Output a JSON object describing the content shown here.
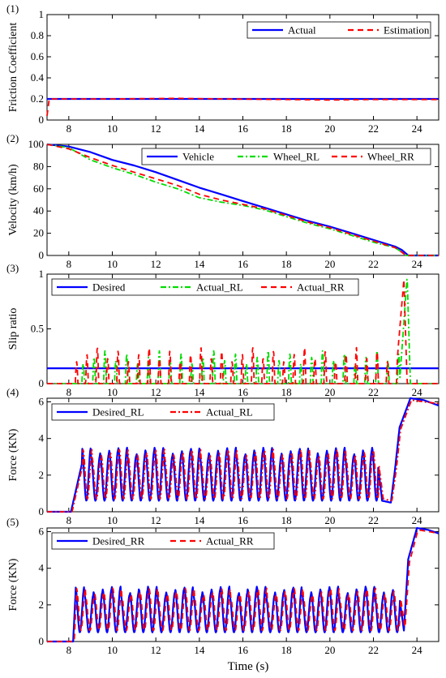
{
  "xlabel": "Time (s)",
  "chart_data": [
    {
      "id": "p1",
      "panel_label": "(1)",
      "type": "line",
      "ylabel": "Friction Coefficient",
      "xlim": [
        7,
        25
      ],
      "ylim": [
        0,
        1
      ],
      "xticks": [
        "8",
        "10",
        "12",
        "14",
        "16",
        "18",
        "20",
        "22",
        "24"
      ],
      "yticks": [
        "0",
        "0.2",
        "0.4",
        "0.6",
        "0.8",
        "1"
      ],
      "legend_position": "top-right",
      "series": [
        {
          "name": "Actual",
          "color": "#0000ff",
          "style": "solid",
          "points": [
            [
              7,
              0.2
            ],
            [
              25,
              0.2
            ]
          ]
        },
        {
          "name": "Estimation",
          "color": "#ff0000",
          "style": "dash",
          "points": [
            [
              7,
              0.04
            ],
            [
              7.1,
              0.2
            ],
            [
              10,
              0.2
            ],
            [
              13,
              0.205
            ],
            [
              15,
              0.2
            ],
            [
              18,
              0.195
            ],
            [
              20,
              0.19
            ],
            [
              22,
              0.195
            ],
            [
              25,
              0.195
            ]
          ]
        }
      ]
    },
    {
      "id": "p2",
      "panel_label": "(2)",
      "type": "line",
      "ylabel": "Velocity (km/h)",
      "xlim": [
        7,
        25
      ],
      "ylim": [
        0,
        100
      ],
      "xticks": [
        "8",
        "10",
        "12",
        "14",
        "16",
        "18",
        "20",
        "22",
        "24"
      ],
      "yticks": [
        "0",
        "20",
        "40",
        "60",
        "80",
        "100"
      ],
      "legend_position": "top-right",
      "series": [
        {
          "name": "Vehicle",
          "color": "#0000ff",
          "style": "solid",
          "points": [
            [
              7,
              100
            ],
            [
              8,
              98
            ],
            [
              9,
              93
            ],
            [
              10,
              86
            ],
            [
              11,
              81
            ],
            [
              12,
              75
            ],
            [
              13,
              68
            ],
            [
              14,
              61
            ],
            [
              15,
              55
            ],
            [
              16,
              49
            ],
            [
              17,
              43
            ],
            [
              18,
              37
            ],
            [
              19,
              31
            ],
            [
              20,
              26
            ],
            [
              21,
              20
            ],
            [
              22,
              14
            ],
            [
              23,
              8
            ],
            [
              23.3,
              5
            ],
            [
              23.6,
              0
            ],
            [
              25,
              0
            ]
          ]
        },
        {
          "name": "Wheel_RL",
          "color": "#00dd00",
          "style": "dashdot",
          "points": [
            [
              7,
              100
            ],
            [
              8,
              97
            ],
            [
              9,
              86
            ],
            [
              10,
              79
            ],
            [
              11,
              73
            ],
            [
              12,
              66
            ],
            [
              13,
              60
            ],
            [
              14,
              52
            ],
            [
              15,
              48
            ],
            [
              16,
              45
            ],
            [
              17,
              41
            ],
            [
              18,
              35
            ],
            [
              19,
              29
            ],
            [
              20,
              24
            ],
            [
              21,
              18
            ],
            [
              22,
              12
            ],
            [
              23,
              7
            ],
            [
              23.3,
              3
            ],
            [
              23.5,
              0
            ],
            [
              25,
              0
            ]
          ]
        },
        {
          "name": "Wheel_RR",
          "color": "#ff0000",
          "style": "dash",
          "points": [
            [
              7,
              100
            ],
            [
              8,
              96
            ],
            [
              9,
              88
            ],
            [
              10,
              81
            ],
            [
              11,
              75
            ],
            [
              12,
              69
            ],
            [
              13,
              63
            ],
            [
              14,
              55
            ],
            [
              15,
              50
            ],
            [
              16,
              46
            ],
            [
              17,
              42
            ],
            [
              18,
              36
            ],
            [
              19,
              30
            ],
            [
              20,
              25
            ],
            [
              21,
              19
            ],
            [
              22,
              13
            ],
            [
              23,
              7
            ],
            [
              23.3,
              3
            ],
            [
              23.5,
              0
            ],
            [
              25,
              0
            ]
          ]
        }
      ]
    },
    {
      "id": "p3",
      "panel_label": "(3)",
      "type": "line",
      "ylabel": "Slip ratio",
      "xlim": [
        7,
        25
      ],
      "ylim": [
        0,
        1
      ],
      "xticks": [
        "8",
        "10",
        "12",
        "14",
        "16",
        "18",
        "20",
        "22",
        "24"
      ],
      "yticks": [
        "0",
        "0.5",
        "1"
      ],
      "legend_position": "top",
      "series": [
        {
          "name": "Desired",
          "color": "#0000ff",
          "style": "solid",
          "points": [
            [
              7,
              0.14
            ],
            [
              25,
              0.14
            ]
          ]
        },
        {
          "name": "Actual_RL",
          "color": "#00dd00",
          "style": "dashdot",
          "osc": {
            "t0": 8.6,
            "t1": 23.2,
            "freq": 2.0,
            "amp_lo": 0.18,
            "amp_hi": 0.3,
            "spike": [
              [
                23.2,
                0
              ],
              [
                23.55,
                0.98
              ],
              [
                23.7,
                0
              ]
            ]
          }
        },
        {
          "name": "Actual_RR",
          "color": "#ff0000",
          "style": "dash",
          "osc": {
            "t0": 8.3,
            "t1": 23.1,
            "freq": 2.1,
            "amp_lo": 0.2,
            "amp_hi": 0.33,
            "spike": [
              [
                23.0,
                0
              ],
              [
                23.4,
                0.95
              ],
              [
                23.55,
                0
              ]
            ]
          }
        }
      ]
    },
    {
      "id": "p4",
      "panel_label": "(4)",
      "type": "line",
      "ylabel": "Force (KN)",
      "xlim": [
        7,
        25
      ],
      "ylim": [
        0,
        6.2
      ],
      "xticks": [
        "8",
        "10",
        "12",
        "14",
        "16",
        "18",
        "20",
        "22",
        "24"
      ],
      "yticks": [
        "0",
        "2",
        "4",
        "6"
      ],
      "legend_position": "top-left",
      "series": [
        {
          "name": "Desired_RL",
          "color": "#0000ff",
          "style": "solid",
          "lag": 0,
          "force": {
            "t0": 8.1,
            "ramp_end": 8.6,
            "base": 2.6,
            "t1": 22.2,
            "freq": 2.4,
            "hi": 3.5,
            "lo": 0.6,
            "dip": [
              [
                22.2,
                2.6
              ],
              [
                22.4,
                0.6
              ],
              [
                22.8,
                0.5
              ],
              [
                23.0,
                2.4
              ],
              [
                23.2,
                4.6
              ],
              [
                23.7,
                6.2
              ],
              [
                24.3,
                6.1
              ],
              [
                25,
                5.8
              ]
            ]
          }
        },
        {
          "name": "Actual_RL",
          "color": "#ff0000",
          "style": "dashdot",
          "lag": 0.05,
          "force": {
            "t0": 8.1,
            "ramp_end": 8.6,
            "base": 2.6,
            "t1": 22.2,
            "freq": 2.4,
            "hi": 3.4,
            "lo": 0.7,
            "dip": [
              [
                22.2,
                2.6
              ],
              [
                22.4,
                0.7
              ],
              [
                22.8,
                0.6
              ],
              [
                23.0,
                2.3
              ],
              [
                23.2,
                4.5
              ],
              [
                23.7,
                6.1
              ],
              [
                24.3,
                6.0
              ],
              [
                25,
                5.9
              ]
            ]
          }
        }
      ]
    },
    {
      "id": "p5",
      "panel_label": "(5)",
      "type": "line",
      "ylabel": "Force (KN)",
      "xlim": [
        7,
        25
      ],
      "ylim": [
        0,
        6.2
      ],
      "xticks": [
        "8",
        "10",
        "12",
        "14",
        "16",
        "18",
        "20",
        "22",
        "24"
      ],
      "yticks": [
        "0",
        "2",
        "4",
        "6"
      ],
      "legend_position": "top-left",
      "series": [
        {
          "name": "Desired_RR",
          "color": "#0000ff",
          "style": "solid",
          "lag": 0,
          "force": {
            "t0": 8.2,
            "ramp_end": 8.3,
            "base": 2.4,
            "t1": 23.2,
            "freq": 2.4,
            "hi": 3.0,
            "lo": 0.5,
            "dip": [
              [
                23.2,
                2.4
              ],
              [
                23.4,
                0.6
              ],
              [
                23.6,
                4.5
              ],
              [
                24.0,
                6.2
              ],
              [
                24.5,
                6.1
              ],
              [
                25,
                5.9
              ]
            ]
          }
        },
        {
          "name": "Actual_RR",
          "color": "#ff0000",
          "style": "dash",
          "lag": 0.05,
          "force": {
            "t0": 8.2,
            "ramp_end": 8.3,
            "base": 2.4,
            "t1": 23.2,
            "freq": 2.4,
            "hi": 2.9,
            "lo": 0.6,
            "dip": [
              [
                23.2,
                2.4
              ],
              [
                23.4,
                0.7
              ],
              [
                23.6,
                4.3
              ],
              [
                24.0,
                6.1
              ],
              [
                24.5,
                6.0
              ],
              [
                25,
                5.9
              ]
            ]
          }
        }
      ]
    }
  ]
}
